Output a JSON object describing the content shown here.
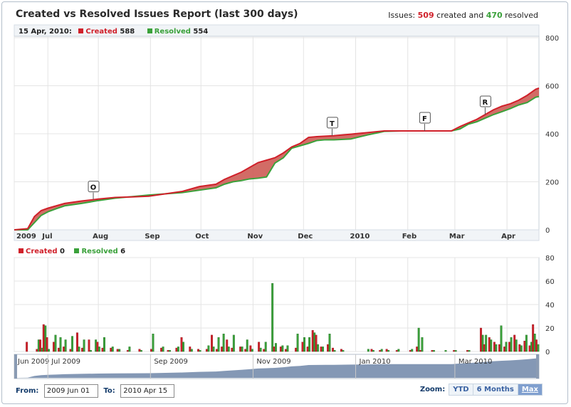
{
  "header": {
    "title": "Created vs Resolved Issues Report (last 300 days)",
    "summary_prefix": "Issues:",
    "created_count": "509",
    "summary_mid": "created and",
    "resolved_count": "470",
    "summary_suffix": "resolved"
  },
  "top_legend": {
    "date": "15 Apr, 2010:",
    "created_label": "Created",
    "created_value": "588",
    "resolved_label": "Resolved",
    "resolved_value": "554"
  },
  "bottom_legend": {
    "created_label": "Created",
    "created_value": "0",
    "resolved_label": "Resolved",
    "resolved_value": "6"
  },
  "colors": {
    "created": "#d0202a",
    "resolved": "#3aa13a",
    "fill": "#cd5c55",
    "navigator": "#6f86a8"
  },
  "controls": {
    "from_label": "From:",
    "from_value": "2009 Jun 01",
    "to_label": "To:",
    "to_value": "2010 Apr 15",
    "zoom_label": "Zoom:",
    "zoom_buttons": [
      "YTD",
      "6 Months",
      "Max"
    ],
    "zoom_active": "Max"
  },
  "chart_data": [
    {
      "type": "area",
      "x_axis_labels": [
        "2009",
        "Jul",
        "Aug",
        "Sep",
        "Oct",
        "Nov",
        "Dec",
        "2010",
        "Feb",
        "Mar",
        "Apr"
      ],
      "ylim": [
        0,
        800
      ],
      "y_ticks": [
        0,
        200,
        400,
        600,
        800
      ],
      "x_days": [
        0,
        8,
        12,
        16,
        20,
        25,
        30,
        40,
        50,
        60,
        70,
        80,
        90,
        100,
        110,
        120,
        125,
        130,
        135,
        140,
        145,
        150,
        155,
        160,
        165,
        170,
        175,
        180,
        185,
        190,
        200,
        210,
        220,
        230,
        240,
        250,
        260,
        265,
        270,
        275,
        280,
        285,
        290,
        295,
        300,
        305,
        310,
        312
      ],
      "series": [
        {
          "name": "Created",
          "values": [
            0,
            5,
            55,
            80,
            90,
            100,
            110,
            120,
            128,
            135,
            137,
            140,
            150,
            160,
            180,
            190,
            210,
            225,
            240,
            260,
            280,
            290,
            300,
            320,
            345,
            360,
            385,
            388,
            390,
            392,
            398,
            405,
            412,
            412,
            412,
            412,
            412,
            430,
            445,
            460,
            480,
            500,
            515,
            525,
            540,
            560,
            585,
            590
          ]
        },
        {
          "name": "Resolved",
          "values": [
            0,
            0,
            30,
            60,
            75,
            88,
            100,
            110,
            122,
            132,
            138,
            145,
            150,
            155,
            165,
            175,
            190,
            200,
            205,
            212,
            215,
            220,
            278,
            300,
            340,
            350,
            360,
            372,
            375,
            375,
            378,
            395,
            410,
            412,
            412,
            412,
            412,
            420,
            440,
            450,
            465,
            480,
            492,
            505,
            520,
            530,
            552,
            555
          ]
        }
      ],
      "annotations": [
        {
          "label": "O",
          "x_day": 47
        },
        {
          "label": "T",
          "x_day": 189
        },
        {
          "label": "F",
          "x_day": 244
        },
        {
          "label": "R",
          "x_day": 280
        }
      ]
    },
    {
      "type": "bar",
      "ylim": [
        0,
        80
      ],
      "y_ticks": [
        0,
        20,
        40,
        60,
        80
      ],
      "x_axis_labels": [],
      "bars": [
        {
          "x_day": 8,
          "created": 8,
          "resolved": 0
        },
        {
          "x_day": 14,
          "created": 2,
          "resolved": 10
        },
        {
          "x_day": 16,
          "created": 10,
          "resolved": 3
        },
        {
          "x_day": 18,
          "created": 23,
          "resolved": 22
        },
        {
          "x_day": 20,
          "created": 12,
          "resolved": 2
        },
        {
          "x_day": 24,
          "created": 8,
          "resolved": 14
        },
        {
          "x_day": 27,
          "created": 3,
          "resolved": 12
        },
        {
          "x_day": 30,
          "created": 4,
          "resolved": 10
        },
        {
          "x_day": 34,
          "created": 2,
          "resolved": 13
        },
        {
          "x_day": 38,
          "created": 16,
          "resolved": 4
        },
        {
          "x_day": 41,
          "created": 3,
          "resolved": 10
        },
        {
          "x_day": 45,
          "created": 10,
          "resolved": 1
        },
        {
          "x_day": 48,
          "created": 0,
          "resolved": 10
        },
        {
          "x_day": 50,
          "created": 8,
          "resolved": 4
        },
        {
          "x_day": 53,
          "created": 3,
          "resolved": 12
        },
        {
          "x_day": 58,
          "created": 3,
          "resolved": 4
        },
        {
          "x_day": 62,
          "created": 2,
          "resolved": 2
        },
        {
          "x_day": 68,
          "created": 1,
          "resolved": 4
        },
        {
          "x_day": 75,
          "created": 2,
          "resolved": 1
        },
        {
          "x_day": 82,
          "created": 2,
          "resolved": 15
        },
        {
          "x_day": 88,
          "created": 3,
          "resolved": 4
        },
        {
          "x_day": 92,
          "created": 1,
          "resolved": 1
        },
        {
          "x_day": 97,
          "created": 3,
          "resolved": 4
        },
        {
          "x_day": 100,
          "created": 12,
          "resolved": 8
        },
        {
          "x_day": 105,
          "created": 4,
          "resolved": 2
        },
        {
          "x_day": 110,
          "created": 2,
          "resolved": 1
        },
        {
          "x_day": 115,
          "created": 2,
          "resolved": 5
        },
        {
          "x_day": 118,
          "created": 14,
          "resolved": 4
        },
        {
          "x_day": 121,
          "created": 2,
          "resolved": 12
        },
        {
          "x_day": 124,
          "created": 4,
          "resolved": 15
        },
        {
          "x_day": 127,
          "created": 10,
          "resolved": 4
        },
        {
          "x_day": 130,
          "created": 3,
          "resolved": 14
        },
        {
          "x_day": 135,
          "created": 4,
          "resolved": 4
        },
        {
          "x_day": 138,
          "created": 2,
          "resolved": 10
        },
        {
          "x_day": 141,
          "created": 5,
          "resolved": 2
        },
        {
          "x_day": 146,
          "created": 8,
          "resolved": 3
        },
        {
          "x_day": 149,
          "created": 2,
          "resolved": 8
        },
        {
          "x_day": 153,
          "created": 0,
          "resolved": 58
        },
        {
          "x_day": 155,
          "created": 4,
          "resolved": 7
        },
        {
          "x_day": 159,
          "created": 4,
          "resolved": 5
        },
        {
          "x_day": 162,
          "created": 2,
          "resolved": 5
        },
        {
          "x_day": 168,
          "created": 3,
          "resolved": 15
        },
        {
          "x_day": 172,
          "created": 8,
          "resolved": 12
        },
        {
          "x_day": 175,
          "created": 4,
          "resolved": 12
        },
        {
          "x_day": 178,
          "created": 18,
          "resolved": 16
        },
        {
          "x_day": 180,
          "created": 14,
          "resolved": 6
        },
        {
          "x_day": 183,
          "created": 4,
          "resolved": 4
        },
        {
          "x_day": 187,
          "created": 6,
          "resolved": 15
        },
        {
          "x_day": 190,
          "created": 3,
          "resolved": 1
        },
        {
          "x_day": 195,
          "created": 2,
          "resolved": 1
        },
        {
          "x_day": 210,
          "created": 0,
          "resolved": 2
        },
        {
          "x_day": 213,
          "created": 2,
          "resolved": 1
        },
        {
          "x_day": 218,
          "created": 1,
          "resolved": 2
        },
        {
          "x_day": 222,
          "created": 2,
          "resolved": 1
        },
        {
          "x_day": 228,
          "created": 1,
          "resolved": 2
        },
        {
          "x_day": 236,
          "created": 1,
          "resolved": 2
        },
        {
          "x_day": 240,
          "created": 4,
          "resolved": 20
        },
        {
          "x_day": 242,
          "created": 1,
          "resolved": 12
        },
        {
          "x_day": 249,
          "created": 1,
          "resolved": 1
        },
        {
          "x_day": 256,
          "created": 0,
          "resolved": 1
        },
        {
          "x_day": 262,
          "created": 1,
          "resolved": 1
        },
        {
          "x_day": 270,
          "created": 1,
          "resolved": 1
        },
        {
          "x_day": 278,
          "created": 20,
          "resolved": 14
        },
        {
          "x_day": 280,
          "created": 6,
          "resolved": 14
        },
        {
          "x_day": 283,
          "created": 12,
          "resolved": 10
        },
        {
          "x_day": 286,
          "created": 8,
          "resolved": 6
        },
        {
          "x_day": 289,
          "created": 6,
          "resolved": 22
        },
        {
          "x_day": 292,
          "created": 4,
          "resolved": 8
        },
        {
          "x_day": 295,
          "created": 8,
          "resolved": 12
        },
        {
          "x_day": 298,
          "created": 14,
          "resolved": 10
        },
        {
          "x_day": 301,
          "created": 6,
          "resolved": 5
        },
        {
          "x_day": 304,
          "created": 9,
          "resolved": 14
        },
        {
          "x_day": 307,
          "created": 5,
          "resolved": 8
        },
        {
          "x_day": 309,
          "created": 23,
          "resolved": 15
        },
        {
          "x_day": 311,
          "created": 10,
          "resolved": 6
        }
      ]
    }
  ],
  "navigator": {
    "labels": [
      "Jun 2009",
      "Jul 2009",
      "Sep 2009",
      "Nov 2009",
      "Jan 2010",
      "Mar 2010"
    ]
  }
}
